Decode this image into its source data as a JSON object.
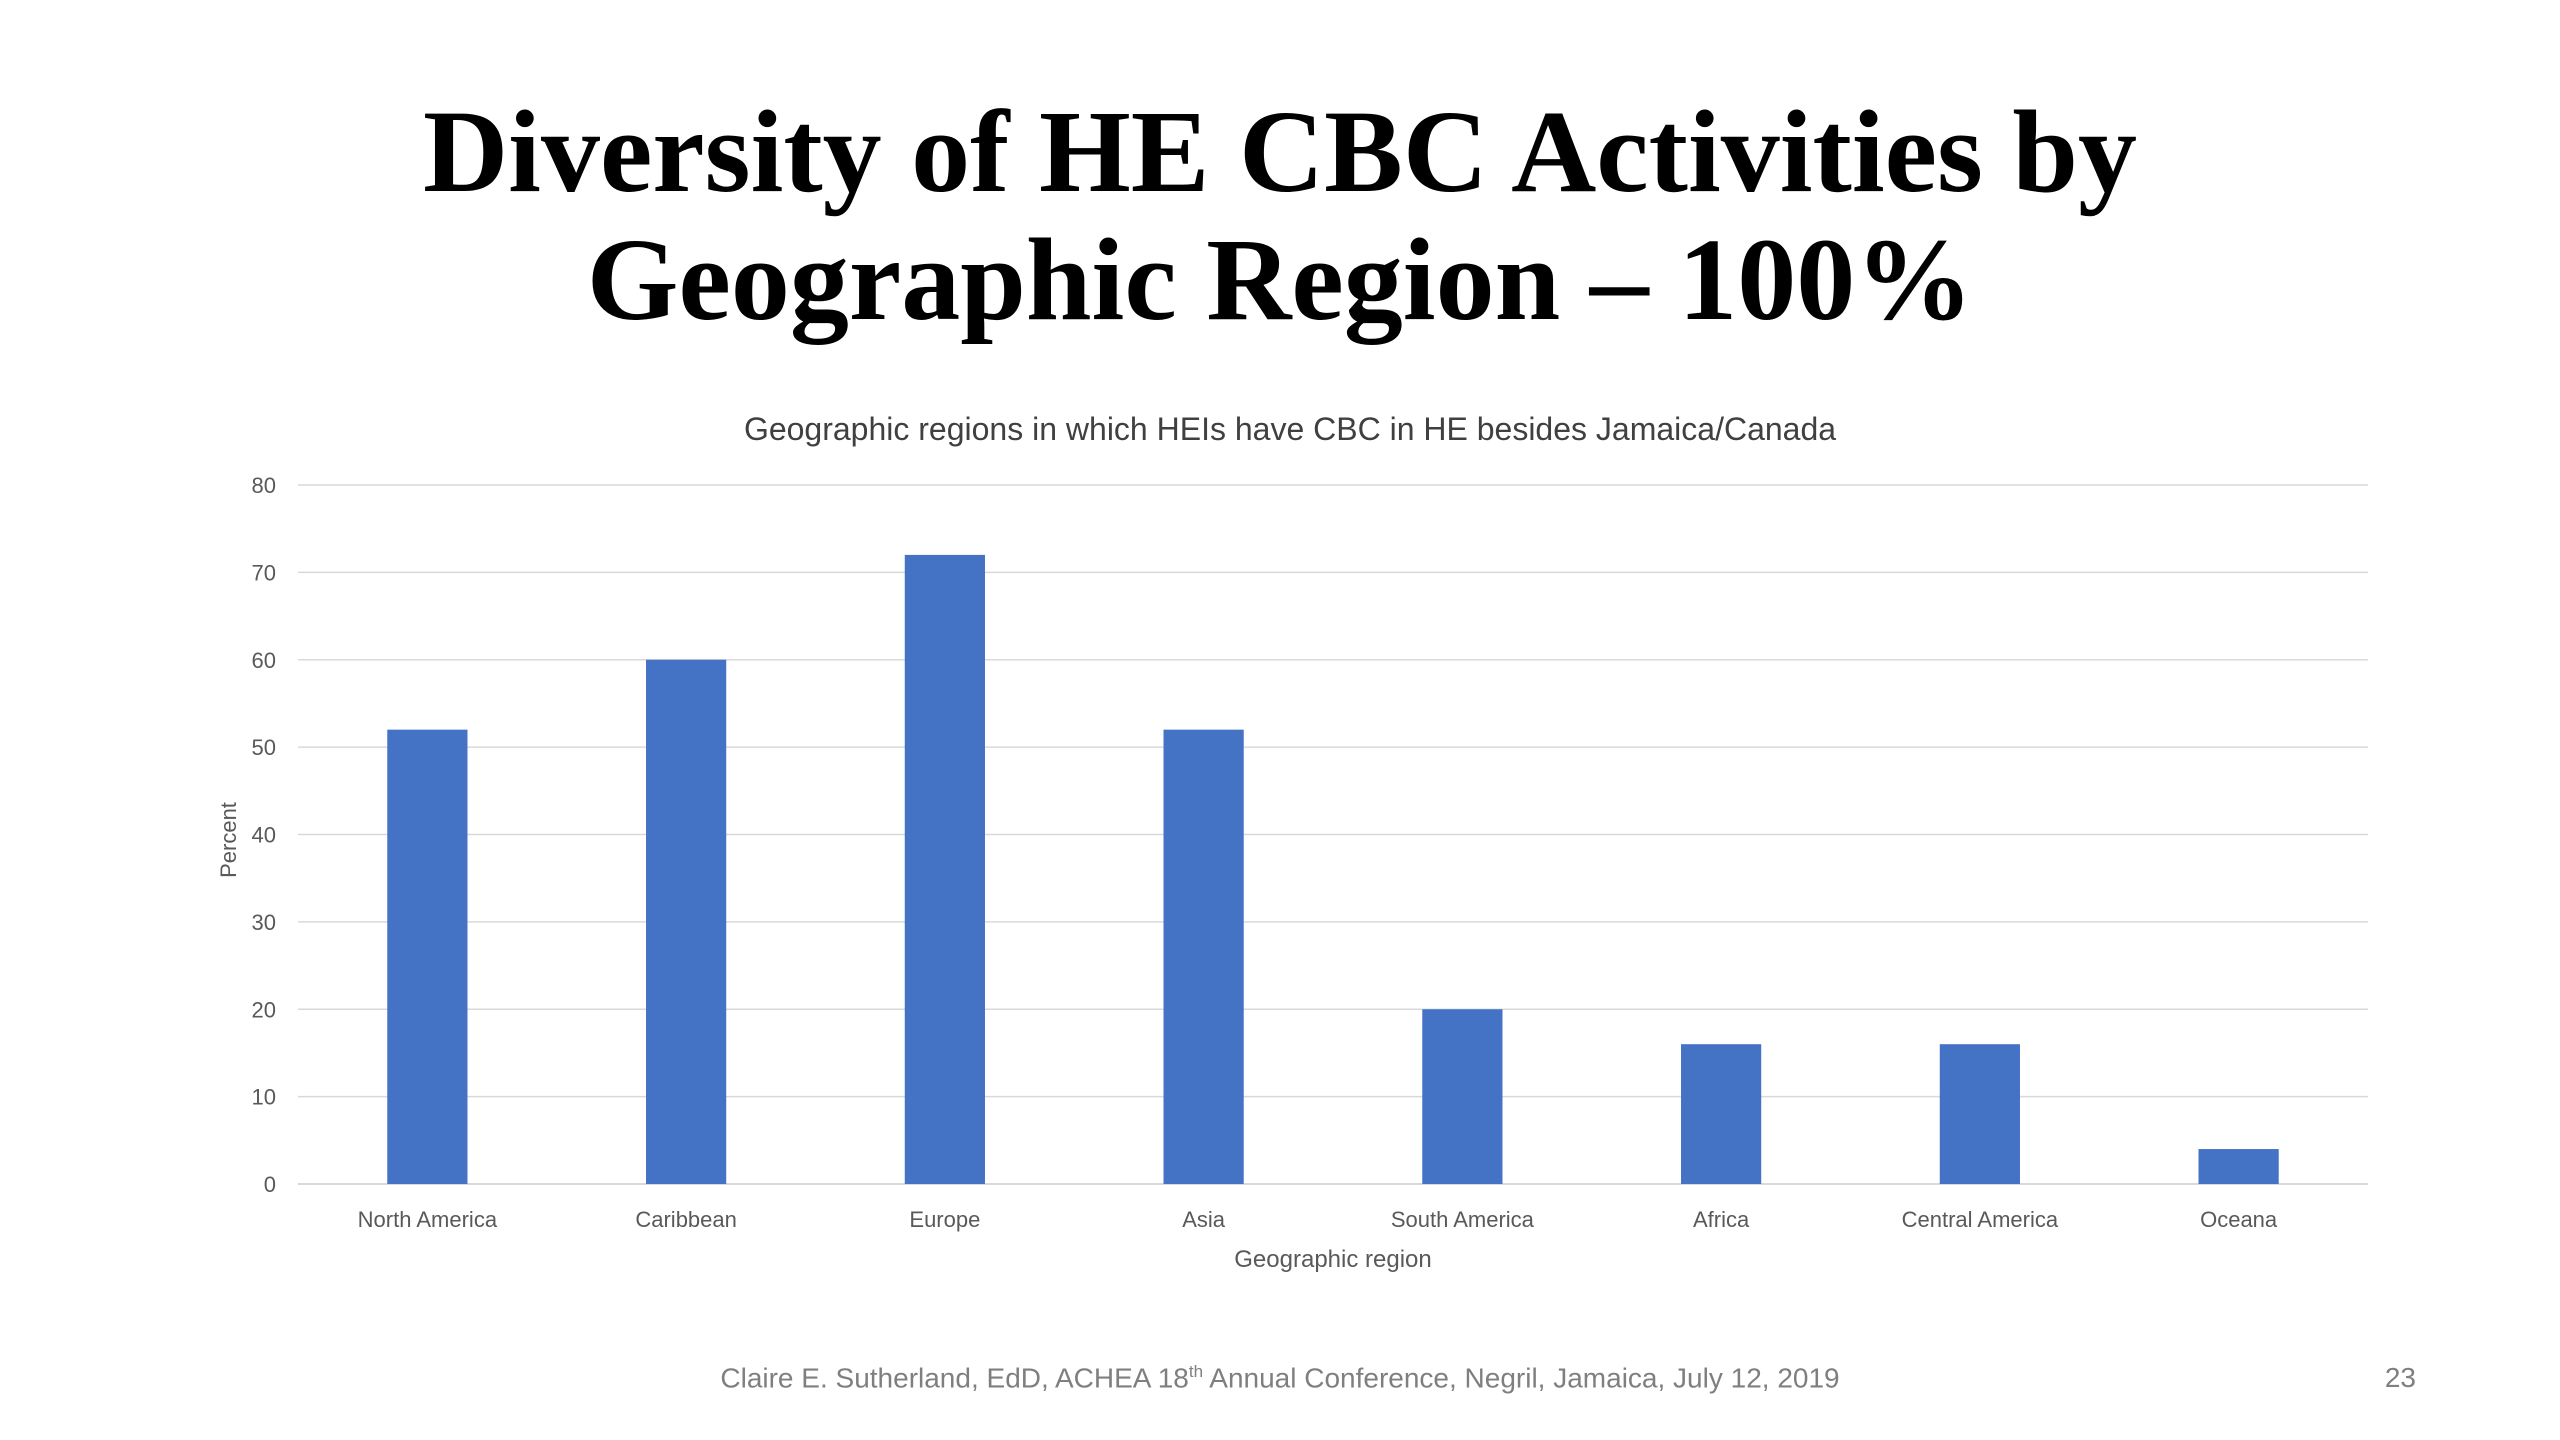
{
  "slide": {
    "title_line1": "Diversity of  HE CBC Activities by",
    "title_line2": "Geographic Region – 100%",
    "footer_author": "Claire E. Sutherland, EdD, ACHEA 18",
    "footer_sup": "th",
    "footer_rest": " Annual Conference, Negril, Jamaica, July 12, 2019",
    "page_number": "23"
  },
  "chart_data": {
    "type": "bar",
    "title": "Geographic regions in which HEIs have CBC in HE besides Jamaica/Canada",
    "xlabel": "Geographic region",
    "ylabel": "Percent",
    "categories": [
      "North America",
      "Caribbean",
      "Europe",
      "Asia",
      "South America",
      "Africa",
      "Central America",
      "Oceana"
    ],
    "values": [
      52,
      60,
      72,
      52,
      20,
      16,
      16,
      4
    ],
    "ylim": [
      0,
      80
    ],
    "yticks": [
      0,
      10,
      20,
      30,
      40,
      50,
      60,
      70,
      80
    ],
    "grid": true,
    "legend": "none",
    "colors": {
      "bar": "#4472c4",
      "grid": "#d9d9d9",
      "axis_text": "#595959",
      "title_text": "#404040"
    }
  }
}
